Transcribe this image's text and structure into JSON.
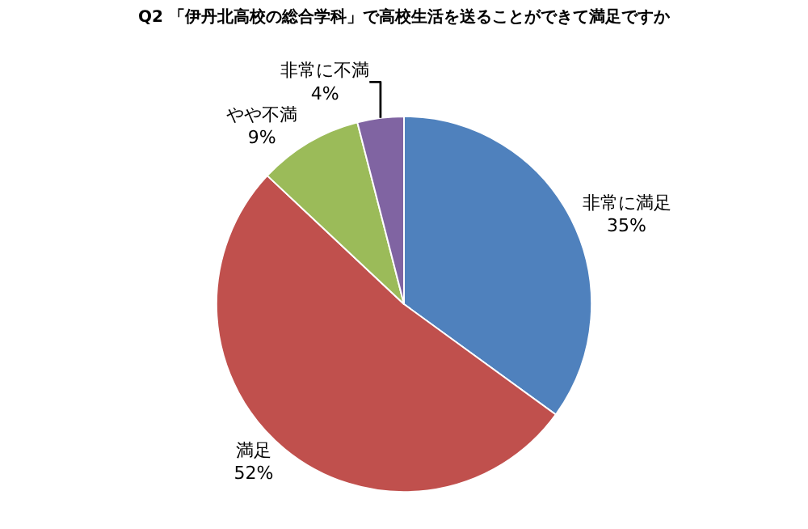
{
  "chart_data": {
    "type": "pie",
    "title": "Q2 「伊丹北高校の総合学科」で高校生活を送ることができて満足ですか",
    "categories": [
      "非常に満足",
      "満足",
      "やや不満",
      "非常に不満"
    ],
    "values": [
      35,
      52,
      9,
      4
    ],
    "value_labels": [
      "35%",
      "52%",
      "9%",
      "4%"
    ],
    "colors": [
      "#4f81bd",
      "#c0504d",
      "#9bbb59",
      "#8064a2"
    ],
    "legend": false
  }
}
